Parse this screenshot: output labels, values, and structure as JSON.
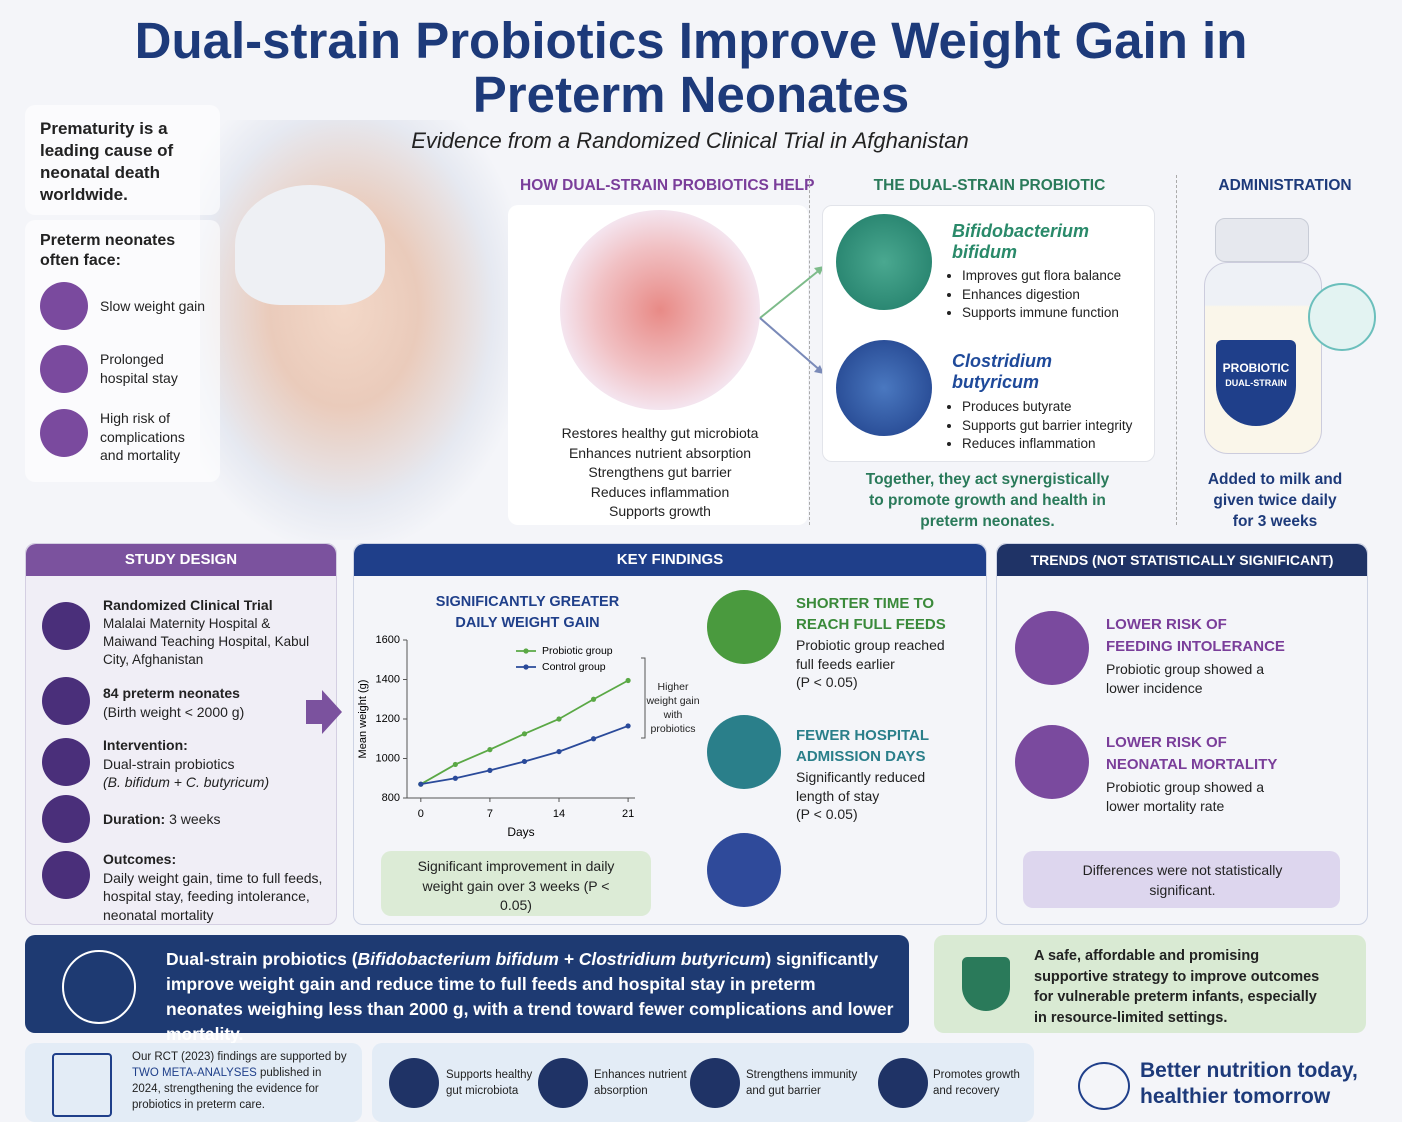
{
  "header": {
    "title": "Dual-strain Probiotics Improve Weight Gain in Preterm Neonates",
    "subtitle": "Evidence from a Randomized Clinical Trial in Afghanistan"
  },
  "intro": {
    "fact": "Prematurity is a leading cause of neonatal death worldwide.",
    "face_title": "Preterm neonates often face:",
    "problems": [
      "Slow weight gain",
      "Prolonged hospital stay",
      "High risk of complications and mortality"
    ]
  },
  "how": {
    "title": "HOW DUAL-STRAIN PROBIOTICS HELP",
    "benefits": [
      "Restores healthy gut microbiota",
      "Enhances nutrient absorption",
      "Strengthens gut barrier",
      "Reduces inflammation",
      "Supports growth"
    ]
  },
  "probiotic": {
    "title": "THE DUAL-STRAIN PROBIOTIC",
    "strains": [
      {
        "name": "Bifidobacterium bifidum",
        "effects": [
          "Improves gut flora balance",
          "Enhances digestion",
          "Supports immune function"
        ]
      },
      {
        "name": "Clostridium butyricum",
        "effects": [
          "Produces butyrate",
          "Supports gut barrier integrity",
          "Reduces inflammation"
        ]
      }
    ],
    "summary": "Together, they act synergistically to promote growth and health in preterm neonates."
  },
  "administration": {
    "title": "ADMINISTRATION",
    "label_top": "PROBIOTIC",
    "label_bottom": "DUAL-STRAIN",
    "text": "Added to milk and given twice daily for 3 weeks"
  },
  "study_design": {
    "title": "STUDY DESIGN",
    "items": [
      {
        "head": "Randomized Clinical Trial",
        "text": "Malalai Maternity Hospital & Maiwand Teaching Hospital, Kabul City, Afghanistan"
      },
      {
        "head": "84 preterm neonates",
        "text": "(Birth weight < 2000 g)"
      },
      {
        "head": "Intervention:",
        "text": "Dual-strain probiotics",
        "note": "(B. bifidum + C. butyricum)"
      },
      {
        "head": "Duration:",
        "text": "3 weeks"
      },
      {
        "head": "Outcomes:",
        "text": "Daily weight gain, time to full feeds, hospital stay, feeding intolerance, neonatal mortality"
      }
    ]
  },
  "key_findings": {
    "title": "KEY FINDINGS",
    "chart_note": "Significant improvement in daily weight gain over 3 weeks (P < 0.05)",
    "items": [
      {
        "title": "SHORTER TIME TO REACH FULL FEEDS",
        "text": "Probiotic group reached full feeds earlier",
        "p": "(P < 0.05)"
      },
      {
        "title": "FEWER HOSPITAL ADMISSION DAYS",
        "text": "Significantly reduced length of stay",
        "p": "(P < 0.05)"
      }
    ]
  },
  "chart_data": {
    "type": "line",
    "title": "SIGNIFICANTLY GREATER DAILY WEIGHT GAIN",
    "x_label": "Days",
    "y_label": "Mean weight (g)",
    "x": [
      0,
      3.5,
      7,
      10.5,
      14,
      17.5,
      21
    ],
    "series": [
      {
        "name": "Probiotic group",
        "color": "#5aa845",
        "values": [
          870,
          970,
          1045,
          1125,
          1200,
          1300,
          1395
        ]
      },
      {
        "name": "Control group",
        "color": "#2a4a9a",
        "values": [
          870,
          900,
          940,
          985,
          1035,
          1100,
          1165
        ]
      }
    ],
    "xlim": [
      -1.4,
      21.7
    ],
    "ylim": [
      800,
      1600
    ],
    "xticks": [
      0,
      7,
      14,
      21
    ],
    "yticks": [
      800,
      1000,
      1200,
      1400,
      1600
    ],
    "annotation": "Higher weight gain with probiotics"
  },
  "trends": {
    "title": "TRENDS (NOT STATISTICALLY SIGNIFICANT)",
    "items": [
      {
        "title": "LOWER RISK OF FEEDING INTOLERANCE",
        "text": "Probiotic group showed a lower incidence"
      },
      {
        "title": "LOWER RISK OF NEONATAL MORTALITY",
        "text": "Probiotic group showed a lower mortality rate"
      }
    ],
    "note": "Differences were not statistically significant."
  },
  "conclusion": {
    "parts": [
      "Dual-strain probiotics (",
      "Bifidobacterium bifidum + Clostridium butyricum",
      ") significantly improve weight gain and reduce time to full feeds and hospital stay in preterm neonates weighing less than 2000 g, with a trend toward fewer complications and lower mortality."
    ]
  },
  "strategy": "A safe, affordable and promising supportive strategy to improve outcomes for vulnerable preterm infants, especially in resource-limited settings.",
  "footer": {
    "rct": [
      "Our RCT (2023) findings are supported by ",
      "TWO META-ANALYSES",
      " published in 2024, strengthening the evidence for probiotics in preterm care."
    ],
    "benefits": [
      "Supports healthy gut microbiota",
      "Enhances nutrient absorption",
      "Strengthens immunity and gut barrier",
      "Promotes growth and recovery"
    ],
    "tagline": "Better nutrition today, healthier tomorrow"
  }
}
